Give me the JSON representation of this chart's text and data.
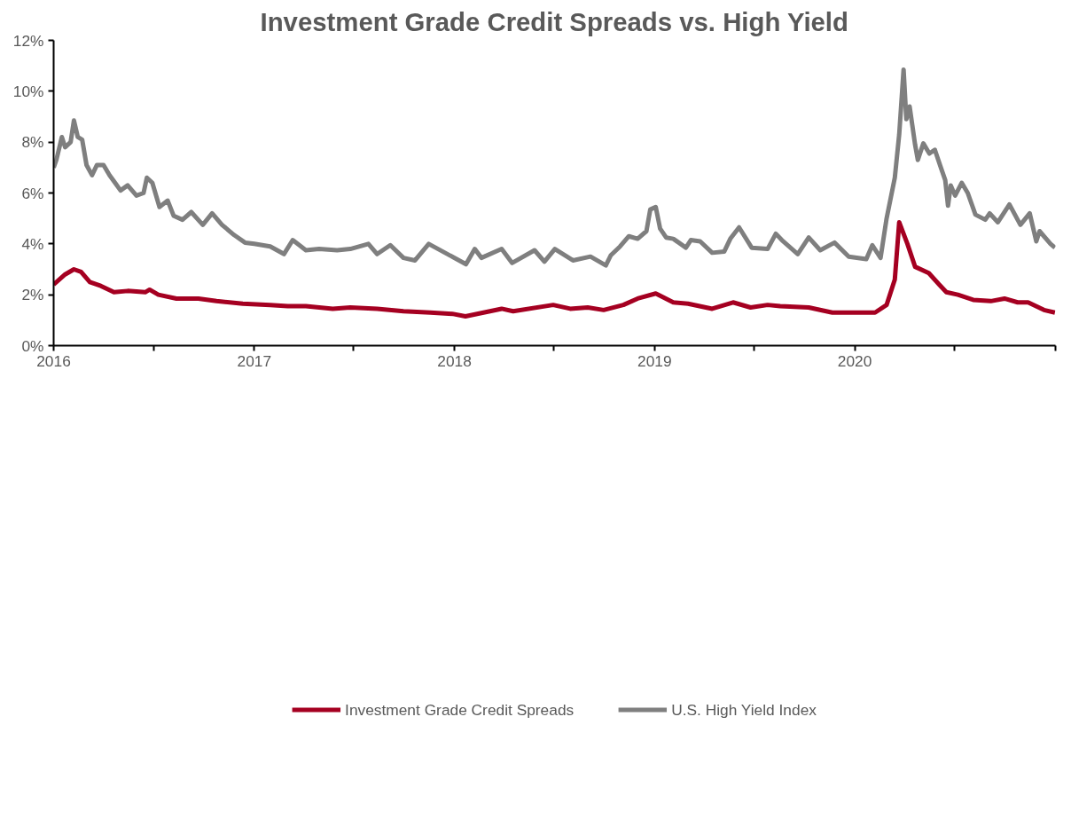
{
  "chart_data": {
    "type": "line",
    "title": "Investment Grade Credit Spreads vs. High Yield",
    "xlim": [
      "2016-01-01",
      "2021-01-01"
    ],
    "xticks": [
      {
        "value": "2016-01-01",
        "label": "2016"
      },
      {
        "value": "2016-07-01",
        "label": null
      },
      {
        "value": "2017-01-01",
        "label": "2017"
      },
      {
        "value": "2017-07-01",
        "label": null
      },
      {
        "value": "2018-01-01",
        "label": "2018"
      },
      {
        "value": "2018-07-01",
        "label": null
      },
      {
        "value": "2019-01-01",
        "label": "2019"
      },
      {
        "value": "2019-07-01",
        "label": null
      },
      {
        "value": "2020-01-01",
        "label": "2020"
      },
      {
        "value": "2020-07-01",
        "label": null
      },
      {
        "value": "2021-01-01",
        "label": null
      }
    ],
    "ylim": [
      0,
      12
    ],
    "yticks": [
      {
        "value": 0,
        "label": "0%"
      },
      {
        "value": 2,
        "label": "2%"
      },
      {
        "value": 4,
        "label": "4%"
      },
      {
        "value": 6,
        "label": "6%"
      },
      {
        "value": 8,
        "label": "8%"
      },
      {
        "value": 10,
        "label": "10%"
      },
      {
        "value": 12,
        "label": "12%"
      }
    ],
    "grid": false,
    "legend": "bottom",
    "marker": "none",
    "line_style": "solid",
    "series": [
      {
        "name": "Investment Grade Credit Spreads",
        "color": "#a50021",
        "x": [
          "2016-01-01",
          "2016-01-22",
          "2016-02-07",
          "2016-02-20",
          "2016-03-07",
          "2016-03-27",
          "2016-04-20",
          "2016-05-15",
          "2016-06-16",
          "2016-06-24",
          "2016-07-10",
          "2016-08-12",
          "2016-09-21",
          "2016-10-24",
          "2016-12-11",
          "2017-01-30",
          "2017-03-03",
          "2017-04-05",
          "2017-05-24",
          "2017-06-25",
          "2017-08-13",
          "2017-09-30",
          "2017-11-18",
          "2017-12-28",
          "2018-01-21",
          "2018-03-28",
          "2018-04-18",
          "2018-06-30",
          "2018-07-31",
          "2018-09-01",
          "2018-09-30",
          "2018-11-05",
          "2018-12-01",
          "2019-01-03",
          "2019-02-04",
          "2019-03-03",
          "2019-04-16",
          "2019-05-24",
          "2019-06-25",
          "2019-07-26",
          "2019-08-18",
          "2019-10-09",
          "2019-11-21",
          "2020-01-01",
          "2020-02-07",
          "2020-02-28",
          "2020-03-14",
          "2020-03-22",
          "2020-04-06",
          "2020-04-20",
          "2020-05-15",
          "2020-06-03",
          "2020-06-16",
          "2020-07-07",
          "2020-08-04",
          "2020-09-05",
          "2020-09-30",
          "2020-10-24",
          "2020-11-12",
          "2020-12-11",
          "2020-12-31"
        ],
        "values": [
          2.4,
          2.8,
          3.0,
          2.9,
          2.5,
          2.35,
          2.1,
          2.15,
          2.1,
          2.2,
          2.0,
          1.85,
          1.85,
          1.75,
          1.65,
          1.6,
          1.55,
          1.55,
          1.45,
          1.5,
          1.45,
          1.35,
          1.3,
          1.25,
          1.15,
          1.45,
          1.35,
          1.6,
          1.45,
          1.5,
          1.4,
          1.6,
          1.85,
          2.05,
          1.7,
          1.65,
          1.45,
          1.7,
          1.5,
          1.6,
          1.55,
          1.5,
          1.3,
          1.3,
          1.3,
          1.6,
          2.6,
          4.85,
          4.0,
          3.1,
          2.85,
          2.4,
          2.1,
          2.0,
          1.8,
          1.75,
          1.85,
          1.7,
          1.7,
          1.4,
          1.3
        ]
      },
      {
        "name": "U.S. High Yield Index",
        "color": "#7f7f7f",
        "x": [
          "2016-01-01",
          "2016-01-06",
          "2016-01-16",
          "2016-01-22",
          "2016-02-01",
          "2016-02-07",
          "2016-02-14",
          "2016-02-22",
          "2016-03-01",
          "2016-03-11",
          "2016-03-20",
          "2016-04-01",
          "2016-04-12",
          "2016-04-22",
          "2016-05-02",
          "2016-05-15",
          "2016-05-31",
          "2016-06-13",
          "2016-06-19",
          "2016-06-29",
          "2016-07-12",
          "2016-07-27",
          "2016-08-07",
          "2016-08-23",
          "2016-09-08",
          "2016-09-29",
          "2016-10-16",
          "2016-11-03",
          "2016-11-25",
          "2016-12-15",
          "2017-01-01",
          "2017-01-30",
          "2017-02-24",
          "2017-03-12",
          "2017-04-05",
          "2017-04-29",
          "2017-06-01",
          "2017-06-25",
          "2017-07-28",
          "2017-08-13",
          "2017-09-06",
          "2017-09-30",
          "2017-10-21",
          "2017-11-15",
          "2018-01-22",
          "2018-02-07",
          "2018-02-19",
          "2018-03-28",
          "2018-04-16",
          "2018-05-27",
          "2018-06-14",
          "2018-07-03",
          "2018-08-05",
          "2018-09-06",
          "2018-10-04",
          "2018-10-13",
          "2018-10-30",
          "2018-11-15",
          "2018-12-01",
          "2018-12-17",
          "2018-12-24",
          "2019-01-03",
          "2019-01-11",
          "2019-01-22",
          "2019-02-04",
          "2019-02-27",
          "2019-03-08",
          "2019-03-25",
          "2019-04-16",
          "2019-05-08",
          "2019-05-19",
          "2019-06-04",
          "2019-06-27",
          "2019-07-26",
          "2019-08-10",
          "2019-08-21",
          "2019-09-19",
          "2019-10-09",
          "2019-10-30",
          "2019-11-25",
          "2019-12-21",
          "2020-01-22",
          "2020-02-02",
          "2020-02-17",
          "2020-02-28",
          "2020-03-14",
          "2020-03-22",
          "2020-03-30",
          "2020-04-04",
          "2020-04-10",
          "2020-04-20",
          "2020-04-25",
          "2020-05-05",
          "2020-05-16",
          "2020-05-26",
          "2020-06-06",
          "2020-06-14",
          "2020-06-19",
          "2020-06-24",
          "2020-07-02",
          "2020-07-14",
          "2020-07-25",
          "2020-08-08",
          "2020-08-26",
          "2020-09-03",
          "2020-09-18",
          "2020-10-09",
          "2020-10-29",
          "2020-11-15",
          "2020-11-27",
          "2020-12-03",
          "2020-12-23",
          "2020-12-31"
        ],
        "values": [
          7.0,
          7.3,
          8.2,
          7.8,
          8.0,
          8.85,
          8.2,
          8.1,
          7.1,
          6.7,
          7.1,
          7.1,
          6.7,
          6.4,
          6.1,
          6.3,
          5.9,
          6.0,
          6.6,
          6.4,
          5.45,
          5.7,
          5.1,
          4.95,
          5.25,
          4.75,
          5.2,
          4.75,
          4.35,
          4.05,
          4.0,
          3.9,
          3.6,
          4.15,
          3.75,
          3.8,
          3.75,
          3.8,
          4.0,
          3.6,
          3.95,
          3.45,
          3.35,
          4.0,
          3.2,
          3.8,
          3.45,
          3.8,
          3.25,
          3.75,
          3.3,
          3.8,
          3.35,
          3.5,
          3.15,
          3.55,
          3.9,
          4.3,
          4.2,
          4.5,
          5.35,
          5.45,
          4.6,
          4.25,
          4.2,
          3.85,
          4.15,
          4.1,
          3.65,
          3.7,
          4.2,
          4.65,
          3.85,
          3.8,
          4.4,
          4.15,
          3.6,
          4.25,
          3.75,
          4.05,
          3.5,
          3.4,
          3.95,
          3.45,
          5.0,
          6.6,
          8.3,
          10.85,
          8.9,
          9.4,
          7.9,
          7.3,
          7.95,
          7.55,
          7.7,
          7.0,
          6.5,
          5.5,
          6.3,
          5.9,
          6.4,
          6.0,
          5.15,
          4.95,
          5.2,
          4.85,
          5.55,
          4.75,
          5.2,
          4.1,
          4.5,
          4.0,
          3.85
        ]
      }
    ]
  }
}
